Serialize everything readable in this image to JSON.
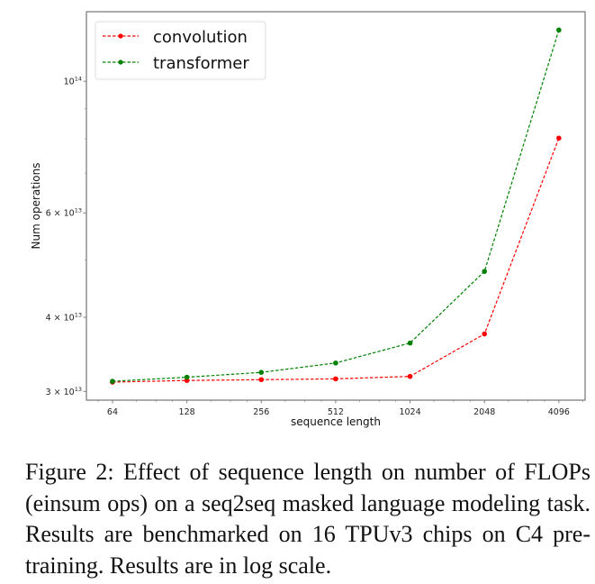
{
  "chart_data": {
    "type": "line",
    "title": "",
    "xlabel": "sequence length",
    "ylabel": "Num operations",
    "xscale": "log2",
    "yscale": "log10",
    "x": [
      64,
      128,
      256,
      512,
      1024,
      2048,
      4096
    ],
    "xtick_labels": [
      "64",
      "128",
      "256",
      "512",
      "1024",
      "2048",
      "4096"
    ],
    "xlim": [
      50.2,
      5230
    ],
    "ylim": [
      29000000000000.0,
      131000000000000.0
    ],
    "yticks": [
      {
        "value": 30000000000000.0,
        "mantissa": "3 × 10",
        "exp": "13"
      },
      {
        "value": 40000000000000.0,
        "mantissa": "4 × 10",
        "exp": "13"
      },
      {
        "value": 60000000000000.0,
        "mantissa": "6 × 10",
        "exp": "13"
      },
      {
        "value": 100000000000000.0,
        "mantissa": "10",
        "exp": "14"
      }
    ],
    "y_minor_ticks": [
      50000000000000.0,
      70000000000000.0,
      80000000000000.0,
      90000000000000.0
    ],
    "grid": false,
    "legend_position": "top-left",
    "series": [
      {
        "name": "convolution",
        "color": "#ff0000",
        "linestyle": "dashed",
        "marker": "circle",
        "values": [
          31100000000000.0,
          31300000000000.0,
          31400000000000.0,
          31500000000000.0,
          31800000000000.0,
          37500000000000.0,
          80200000000000.0
        ]
      },
      {
        "name": "transformer",
        "color": "#008000",
        "linestyle": "dashed",
        "marker": "circle",
        "values": [
          31200000000000.0,
          31700000000000.0,
          32300000000000.0,
          33500000000000.0,
          36200000000000.0,
          47800000000000.0,
          122000000000000.0
        ]
      }
    ]
  },
  "caption": "Figure 2:  Effect of sequence length on number of FLOPs (einsum ops) on a seq2seq masked language modeling task. Results are benchmarked on 16 TPUv3 chips on C4 pre-training. Results are in log scale.",
  "colors": {
    "axis": "#808080",
    "legend_border": "#dddddd"
  }
}
